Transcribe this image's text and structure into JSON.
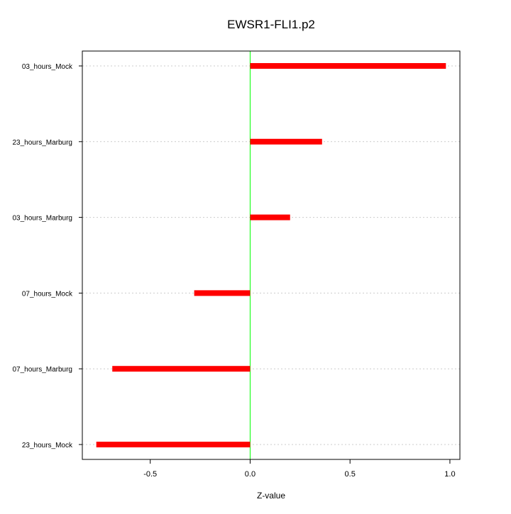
{
  "chart_data": {
    "type": "bar",
    "orientation": "horizontal",
    "title": "EWSR1-FLI1.p2",
    "xlabel": "Z-value",
    "ylabel": "",
    "categories": [
      "03_hours_Mock",
      "23_hours_Marburg",
      "03_hours_Marburg",
      "07_hours_Mock",
      "07_hours_Marburg",
      "23_hours_Mock"
    ],
    "values": [
      0.98,
      0.36,
      0.2,
      -0.28,
      -0.69,
      -0.77
    ],
    "xlim": [
      -0.84,
      1.05
    ],
    "xticks": [
      -0.5,
      0.0,
      0.5,
      1.0
    ],
    "xtick_labels": [
      "-0.5",
      "0.0",
      "0.5",
      "1.0"
    ],
    "reference_line": 0,
    "grid": "horizontal dotted",
    "colors": {
      "bar": "#ff0000",
      "reference_line": "#00ff00",
      "grid": "#cccccc"
    }
  }
}
